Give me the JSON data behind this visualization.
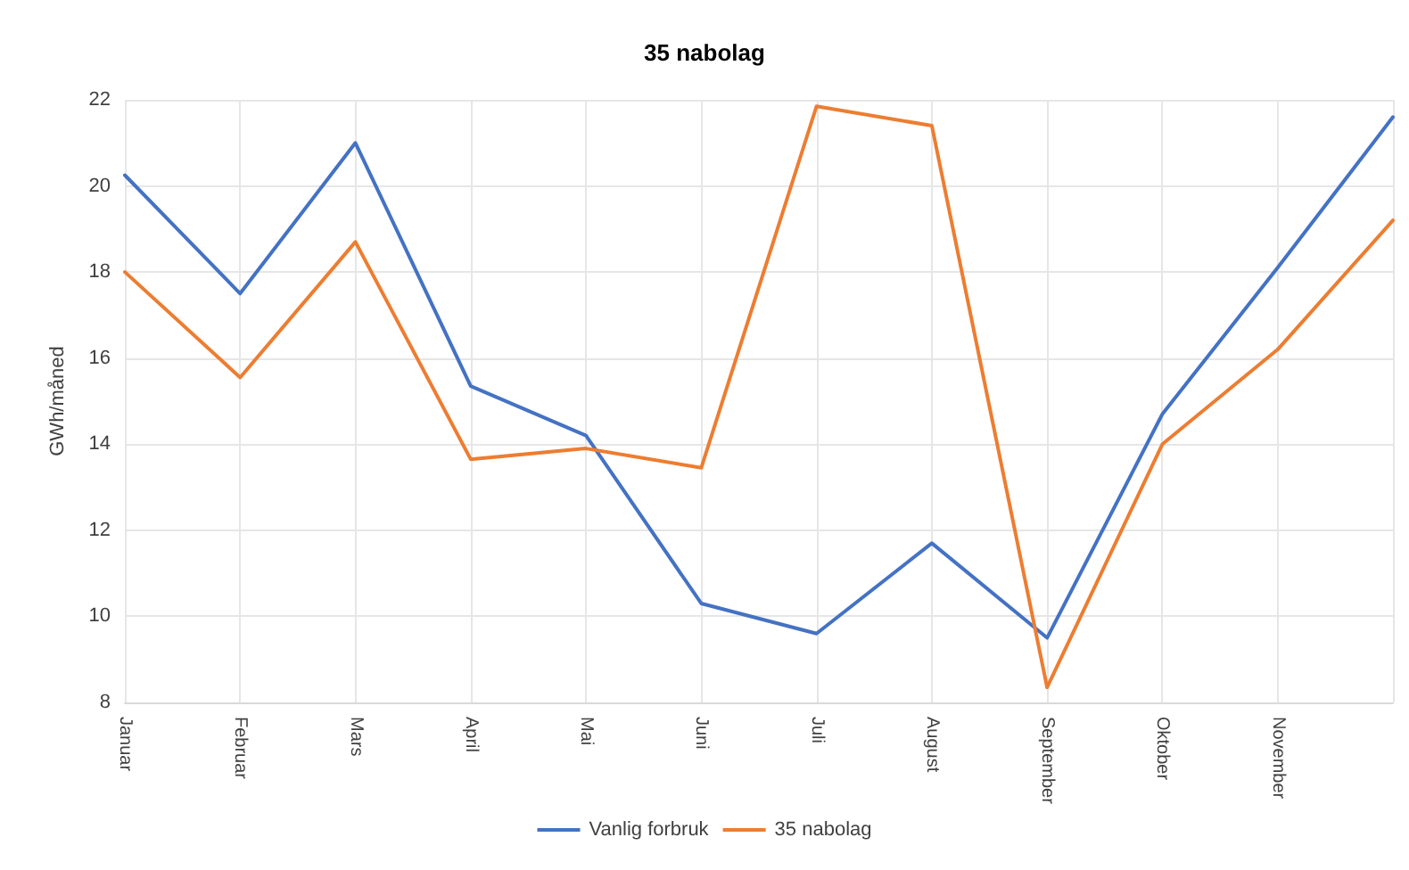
{
  "chart_data": {
    "type": "line",
    "title": "35 nabolag",
    "ylabel": "GWh/måned",
    "categories": [
      "Januar",
      "Februar",
      "Mars",
      "April",
      "Mai",
      "Juni",
      "Juli",
      "August",
      "September",
      "Oktober",
      "November",
      null
    ],
    "series": [
      {
        "name": "Vanlig forbruk",
        "color": "#4472c4",
        "values": [
          20.25,
          17.5,
          21.0,
          15.35,
          14.2,
          10.3,
          9.6,
          11.7,
          9.5,
          14.7,
          18.1,
          21.6
        ]
      },
      {
        "name": "35 nabolag",
        "color": "#ed7d31",
        "values": [
          18.0,
          15.55,
          18.7,
          13.65,
          13.9,
          13.45,
          21.85,
          21.4,
          8.35,
          14.0,
          16.2,
          19.2
        ]
      }
    ],
    "ylim": [
      8,
      22
    ],
    "yticks": [
      8,
      10,
      12,
      14,
      16,
      18,
      20,
      22
    ],
    "grid": true,
    "legend": "bottom",
    "marker": "none",
    "line_style": "solid"
  }
}
